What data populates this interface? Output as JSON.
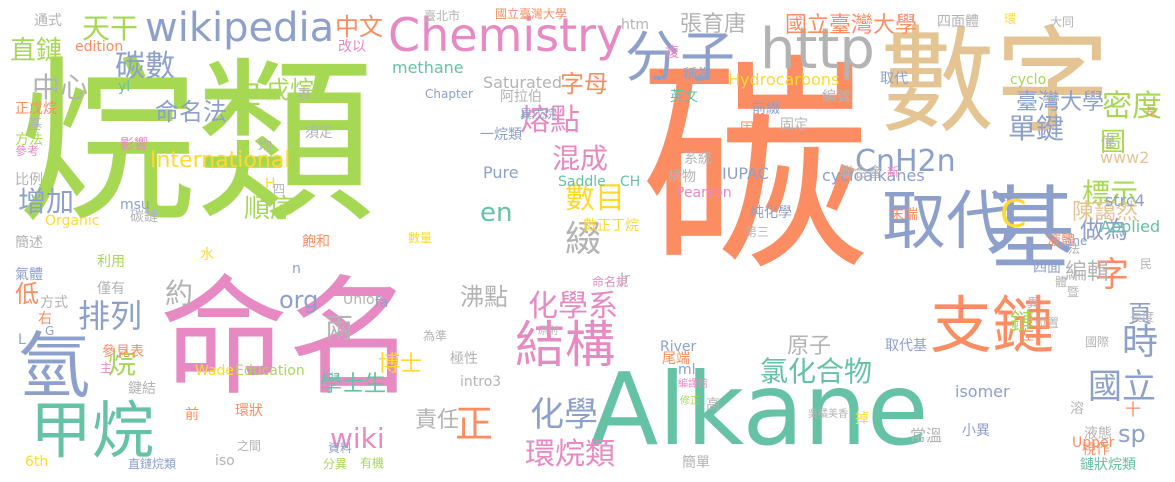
{
  "palette": {
    "green": "#a6d854",
    "orange": "#fc8d62",
    "blue": "#8da0cb",
    "pink": "#e78ac3",
    "teal": "#66c2a5",
    "yellow": "#ffd92f",
    "tan": "#e5c494",
    "gray": "#b3b3b3",
    "background": "#ffffff"
  },
  "words": [
    {
      "text": "烷類",
      "color": "#a6d854"
    },
    {
      "text": "碳",
      "color": "#fc8d62"
    },
    {
      "text": "數字",
      "color": "#e5c494"
    },
    {
      "text": "命名",
      "color": "#e78ac3"
    },
    {
      "text": "Alkane",
      "color": "#66c2a5"
    },
    {
      "text": "基",
      "color": "#8da0cb"
    },
    {
      "text": "取代",
      "color": "#8da0cb"
    },
    {
      "text": "分子",
      "color": "#8da0cb"
    },
    {
      "text": "http",
      "color": "#b3b3b3"
    },
    {
      "text": "Chemistry",
      "color": "#e78ac3"
    },
    {
      "text": "wikipedia",
      "color": "#8da0cb"
    },
    {
      "text": "支鏈",
      "color": "#fc8d62"
    },
    {
      "text": "氫",
      "color": "#8da0cb"
    },
    {
      "text": "甲烷",
      "color": "#66c2a5"
    },
    {
      "text": "結構",
      "color": "#e78ac3"
    },
    {
      "text": "C",
      "color": "#ffd92f"
    },
    {
      "text": "CnH2n",
      "color": "#8da0cb"
    },
    {
      "text": "時",
      "color": "#8da0cb"
    },
    {
      "text": "國立",
      "color": "#8da0cb"
    },
    {
      "text": "字",
      "color": "#fc8d62"
    },
    {
      "text": "單鍵",
      "color": "#8da0cb"
    },
    {
      "text": "密度",
      "color": "#a6d854"
    },
    {
      "text": "國立臺灣大學",
      "color": "#fc8d62"
    },
    {
      "text": "臺灣大學",
      "color": "#8da0cb"
    },
    {
      "text": "標示",
      "color": "#a6d854"
    },
    {
      "text": "做為",
      "color": "#8da0cb"
    },
    {
      "text": "圖",
      "color": "#a6d854"
    },
    {
      "text": "中文",
      "color": "#fc8d62"
    },
    {
      "text": "天干",
      "color": "#a6d854"
    },
    {
      "text": "直鏈",
      "color": "#a6d854"
    },
    {
      "text": "碳數",
      "color": "#8da0cb"
    },
    {
      "text": "中心",
      "color": "#b3b3b3"
    },
    {
      "text": "呈",
      "color": "#a6d854"
    },
    {
      "text": "戊烷",
      "color": "#a6d854"
    },
    {
      "text": "命名法",
      "color": "#8da0cb"
    },
    {
      "text": "International",
      "color": "#ffd92f"
    },
    {
      "text": "增加",
      "color": "#8da0cb"
    },
    {
      "text": "順序",
      "color": "#a6d854"
    },
    {
      "text": "排列",
      "color": "#8da0cb"
    },
    {
      "text": "約",
      "color": "#b3b3b3"
    },
    {
      "text": "org",
      "color": "#8da0cb"
    },
    {
      "text": "兩",
      "color": "#b3b3b3"
    },
    {
      "text": "沸點",
      "color": "#b3b3b3"
    },
    {
      "text": "化學系",
      "color": "#e78ac3"
    },
    {
      "text": "化學",
      "color": "#8da0cb"
    },
    {
      "text": "wiki",
      "color": "#e78ac3"
    },
    {
      "text": "正",
      "color": "#fc8d62"
    },
    {
      "text": "環烷類",
      "color": "#e78ac3"
    },
    {
      "text": "氯化合物",
      "color": "#66c2a5"
    },
    {
      "text": "sp",
      "color": "#8da0cb"
    },
    {
      "text": "en",
      "color": "#66c2a5"
    },
    {
      "text": "數目",
      "color": "#ffd92f"
    },
    {
      "text": "綴",
      "color": "#b3b3b3"
    },
    {
      "text": "混成",
      "color": "#e78ac3"
    },
    {
      "text": "熔點",
      "color": "#e78ac3"
    },
    {
      "text": "字母",
      "color": "#fc8d62"
    },
    {
      "text": "博士",
      "color": "#ffd92f"
    },
    {
      "text": "學士生",
      "color": "#66c2a5"
    },
    {
      "text": "責任",
      "color": "#b3b3b3"
    },
    {
      "text": "原子",
      "color": "#b3b3b3"
    },
    {
      "text": "鏈",
      "color": "#a6d854"
    },
    {
      "text": "頁",
      "color": "#8da0cb"
    },
    {
      "text": "編輯",
      "color": "#b3b3b3"
    },
    {
      "text": "陳藹然",
      "color": "#e5c494"
    },
    {
      "text": "張育唐",
      "color": "#b3b3b3"
    },
    {
      "text": "低",
      "color": "#fc8d62"
    },
    {
      "text": "烷",
      "color": "#a6d854"
    },
    {
      "text": "methane",
      "color": "#66c2a5"
    },
    {
      "text": "Saturated",
      "color": "#b3b3b3"
    },
    {
      "text": "Hydrocarbons",
      "color": "#ffd92f"
    },
    {
      "text": "cycloalkanes",
      "color": "#8da0cb"
    },
    {
      "text": "IUPAC",
      "color": "#8da0cb"
    },
    {
      "text": "Pure",
      "color": "#8da0cb"
    },
    {
      "text": "Saddle",
      "color": "#66c2a5"
    },
    {
      "text": "Applied",
      "color": "#66c2a5"
    },
    {
      "text": "River",
      "color": "#8da0cb"
    },
    {
      "text": "Upper",
      "color": "#fc8d62"
    },
    {
      "text": "isomer",
      "color": "#8da0cb"
    },
    {
      "text": "intro3",
      "color": "#b3b3b3"
    },
    {
      "text": "Wade",
      "color": "#ffd92f"
    },
    {
      "text": "Education",
      "color": "#a6d854"
    },
    {
      "text": "Union",
      "color": "#b3b3b3"
    },
    {
      "text": "Chapter",
      "color": "#8da0cb"
    },
    {
      "text": "cyclo",
      "color": "#a6d854"
    },
    {
      "text": "www2",
      "color": "#e5c494"
    },
    {
      "text": "strc4",
      "color": "#8da0cb"
    },
    {
      "text": "htm",
      "color": "#b3b3b3"
    },
    {
      "text": "Pearson",
      "color": "#e78ac3"
    },
    {
      "text": "edition",
      "color": "#fc8d62"
    },
    {
      "text": "Organic",
      "color": "#ffd92f"
    },
    {
      "text": "msu",
      "color": "#8da0cb"
    },
    {
      "text": "yl",
      "color": "#66c2a5"
    },
    {
      "text": "iso",
      "color": "#b3b3b3"
    },
    {
      "text": "ml",
      "color": "#8da0cb"
    },
    {
      "text": "6th",
      "color": "#ffd92f"
    },
    {
      "text": "ane",
      "color": "#8da0cb"
    },
    {
      "text": "CH",
      "color": "#66c2a5"
    },
    {
      "text": "fa",
      "color": "#8da0cb"
    },
    {
      "text": "H",
      "color": "#ffd92f"
    },
    {
      "text": "G",
      "color": "#8da0cb"
    },
    {
      "text": "L",
      "color": "#8da0cb"
    },
    {
      "text": "n",
      "color": "#8da0cb"
    },
    {
      "text": "通式",
      "color": "#b3b3b3"
    },
    {
      "text": "改以",
      "color": "#e78ac3"
    },
    {
      "text": "臺北市",
      "color": "#b3b3b3"
    },
    {
      "text": "國立臺灣大學",
      "color": "#fc8d62"
    },
    {
      "text": "四面體",
      "color": "#b3b3b3"
    },
    {
      "text": "大同",
      "color": "#b3b3b3"
    },
    {
      "text": "環",
      "color": "#ffd92f"
    },
    {
      "text": "複",
      "color": "#e78ac3"
    },
    {
      "text": "稱為",
      "color": "#8da0cb"
    },
    {
      "text": "取代",
      "color": "#8da0cb"
    },
    {
      "text": "編號",
      "color": "#b3b3b3"
    },
    {
      "text": "前綴",
      "color": "#8da0cb"
    },
    {
      "text": "固定",
      "color": "#b3b3b3"
    },
    {
      "text": "固體",
      "color": "#fc8d62"
    },
    {
      "text": "英文",
      "color": "#66c2a5"
    },
    {
      "text": "阿拉伯",
      "color": "#b3b3b3"
    },
    {
      "text": "異戊烷",
      "color": "#8da0cb"
    },
    {
      "text": "一烷類",
      "color": "#8da0cb"
    },
    {
      "text": "十二",
      "color": "#fc8d62"
    },
    {
      "text": "系統",
      "color": "#b3b3b3"
    },
    {
      "text": "構物",
      "color": "#b3b3b3"
    },
    {
      "text": "聯合會",
      "color": "#b3b3b3"
    },
    {
      "text": "新",
      "color": "#e78ac3"
    },
    {
      "text": "純化學",
      "color": "#8da0cb"
    },
    {
      "text": "第三",
      "color": "#b3b3b3"
    },
    {
      "text": "末端",
      "color": "#fc8d62"
    },
    {
      "text": "液體",
      "color": "#fc8d62"
    },
    {
      "text": "四面",
      "color": "#8da0cb"
    },
    {
      "text": "數正丁烷",
      "color": "#ffd92f"
    },
    {
      "text": "數量",
      "color": "#ffd92f"
    },
    {
      "text": "命名規",
      "color": "#e78ac3"
    },
    {
      "text": "Jr",
      "color": "#b3b3b3"
    },
    {
      "text": "原則",
      "color": "#b3b3b3"
    },
    {
      "text": "為準",
      "color": "#b3b3b3"
    },
    {
      "text": "極性",
      "color": "#b3b3b3"
    },
    {
      "text": "尾端",
      "color": "#fc8d62"
    },
    {
      "text": "編譯館",
      "color": "#e78ac3"
    },
    {
      "text": "修正",
      "color": "#a6d854"
    },
    {
      "text": "高",
      "color": "#b3b3b3"
    },
    {
      "text": "取代基",
      "color": "#8da0cb"
    },
    {
      "text": "國際",
      "color": "#b3b3b3"
    },
    {
      "text": "位置",
      "color": "#b3b3b3"
    },
    {
      "text": "長度",
      "color": "#b3b3b3"
    },
    {
      "text": "液態",
      "color": "#b3b3b3"
    },
    {
      "text": "溶",
      "color": "#b3b3b3"
    },
    {
      "text": "吳橘美香",
      "color": "#b3b3b3"
    },
    {
      "text": "掉",
      "color": "#ffd92f"
    },
    {
      "text": "小異",
      "color": "#8da0cb"
    },
    {
      "text": "常溫",
      "color": "#b3b3b3"
    },
    {
      "text": "鏈狀烷類",
      "color": "#66c2a5"
    },
    {
      "text": "視作",
      "color": "#fc8d62"
    },
    {
      "text": "簡單",
      "color": "#b3b3b3"
    },
    {
      "text": "直鏈烷類",
      "color": "#8da0cb"
    },
    {
      "text": "有機",
      "color": "#a6d854"
    },
    {
      "text": "分異",
      "color": "#a6d854"
    },
    {
      "text": "資料",
      "color": "#8da0cb"
    },
    {
      "text": "之間",
      "color": "#b3b3b3"
    },
    {
      "text": "環狀",
      "color": "#fc8d62"
    },
    {
      "text": "前",
      "color": "#fc8d62"
    },
    {
      "text": "鍵結",
      "color": "#b3b3b3"
    },
    {
      "text": "參見表",
      "color": "#fc8d62"
    },
    {
      "text": "主",
      "color": "#e78ac3"
    },
    {
      "text": "方式",
      "color": "#b3b3b3"
    },
    {
      "text": "右",
      "color": "#fc8d62"
    },
    {
      "text": "僅有",
      "color": "#b3b3b3"
    },
    {
      "text": "利用",
      "color": "#a6d854"
    },
    {
      "text": "氣體",
      "color": "#8da0cb"
    },
    {
      "text": "簡述",
      "color": "#b3b3b3"
    },
    {
      "text": "碳鏈",
      "color": "#b3b3b3"
    },
    {
      "text": "比例",
      "color": "#b3b3b3"
    },
    {
      "text": "參考",
      "color": "#e78ac3"
    },
    {
      "text": "方法",
      "color": "#a6d854"
    },
    {
      "text": "基",
      "color": "#b3b3b3"
    },
    {
      "text": "正戊烷",
      "color": "#fc8d62"
    },
    {
      "text": "影響",
      "color": "#e78ac3"
    },
    {
      "text": "均",
      "color": "#b3b3b3"
    },
    {
      "text": "須定",
      "color": "#b3b3b3"
    },
    {
      "text": "表",
      "color": "#b3b3b3"
    },
    {
      "text": "四",
      "color": "#b3b3b3"
    },
    {
      "text": "水",
      "color": "#ffd92f"
    },
    {
      "text": "飽和",
      "color": "#fc8d62"
    },
    {
      "text": "僅",
      "color": "#b3b3b3"
    },
    {
      "text": "長",
      "color": "#fc8d62"
    },
    {
      "text": "民",
      "color": "#b3b3b3"
    },
    {
      "text": "暨",
      "color": "#b3b3b3"
    },
    {
      "text": "異",
      "color": "#b3b3b3"
    },
    {
      "text": "體",
      "color": "#b3b3b3"
    },
    {
      "text": "法",
      "color": "#b3b3b3"
    },
    {
      "text": "左",
      "color": "#fc8d62"
    },
    {
      "text": "十",
      "color": "#fc8d62"
    }
  ]
}
